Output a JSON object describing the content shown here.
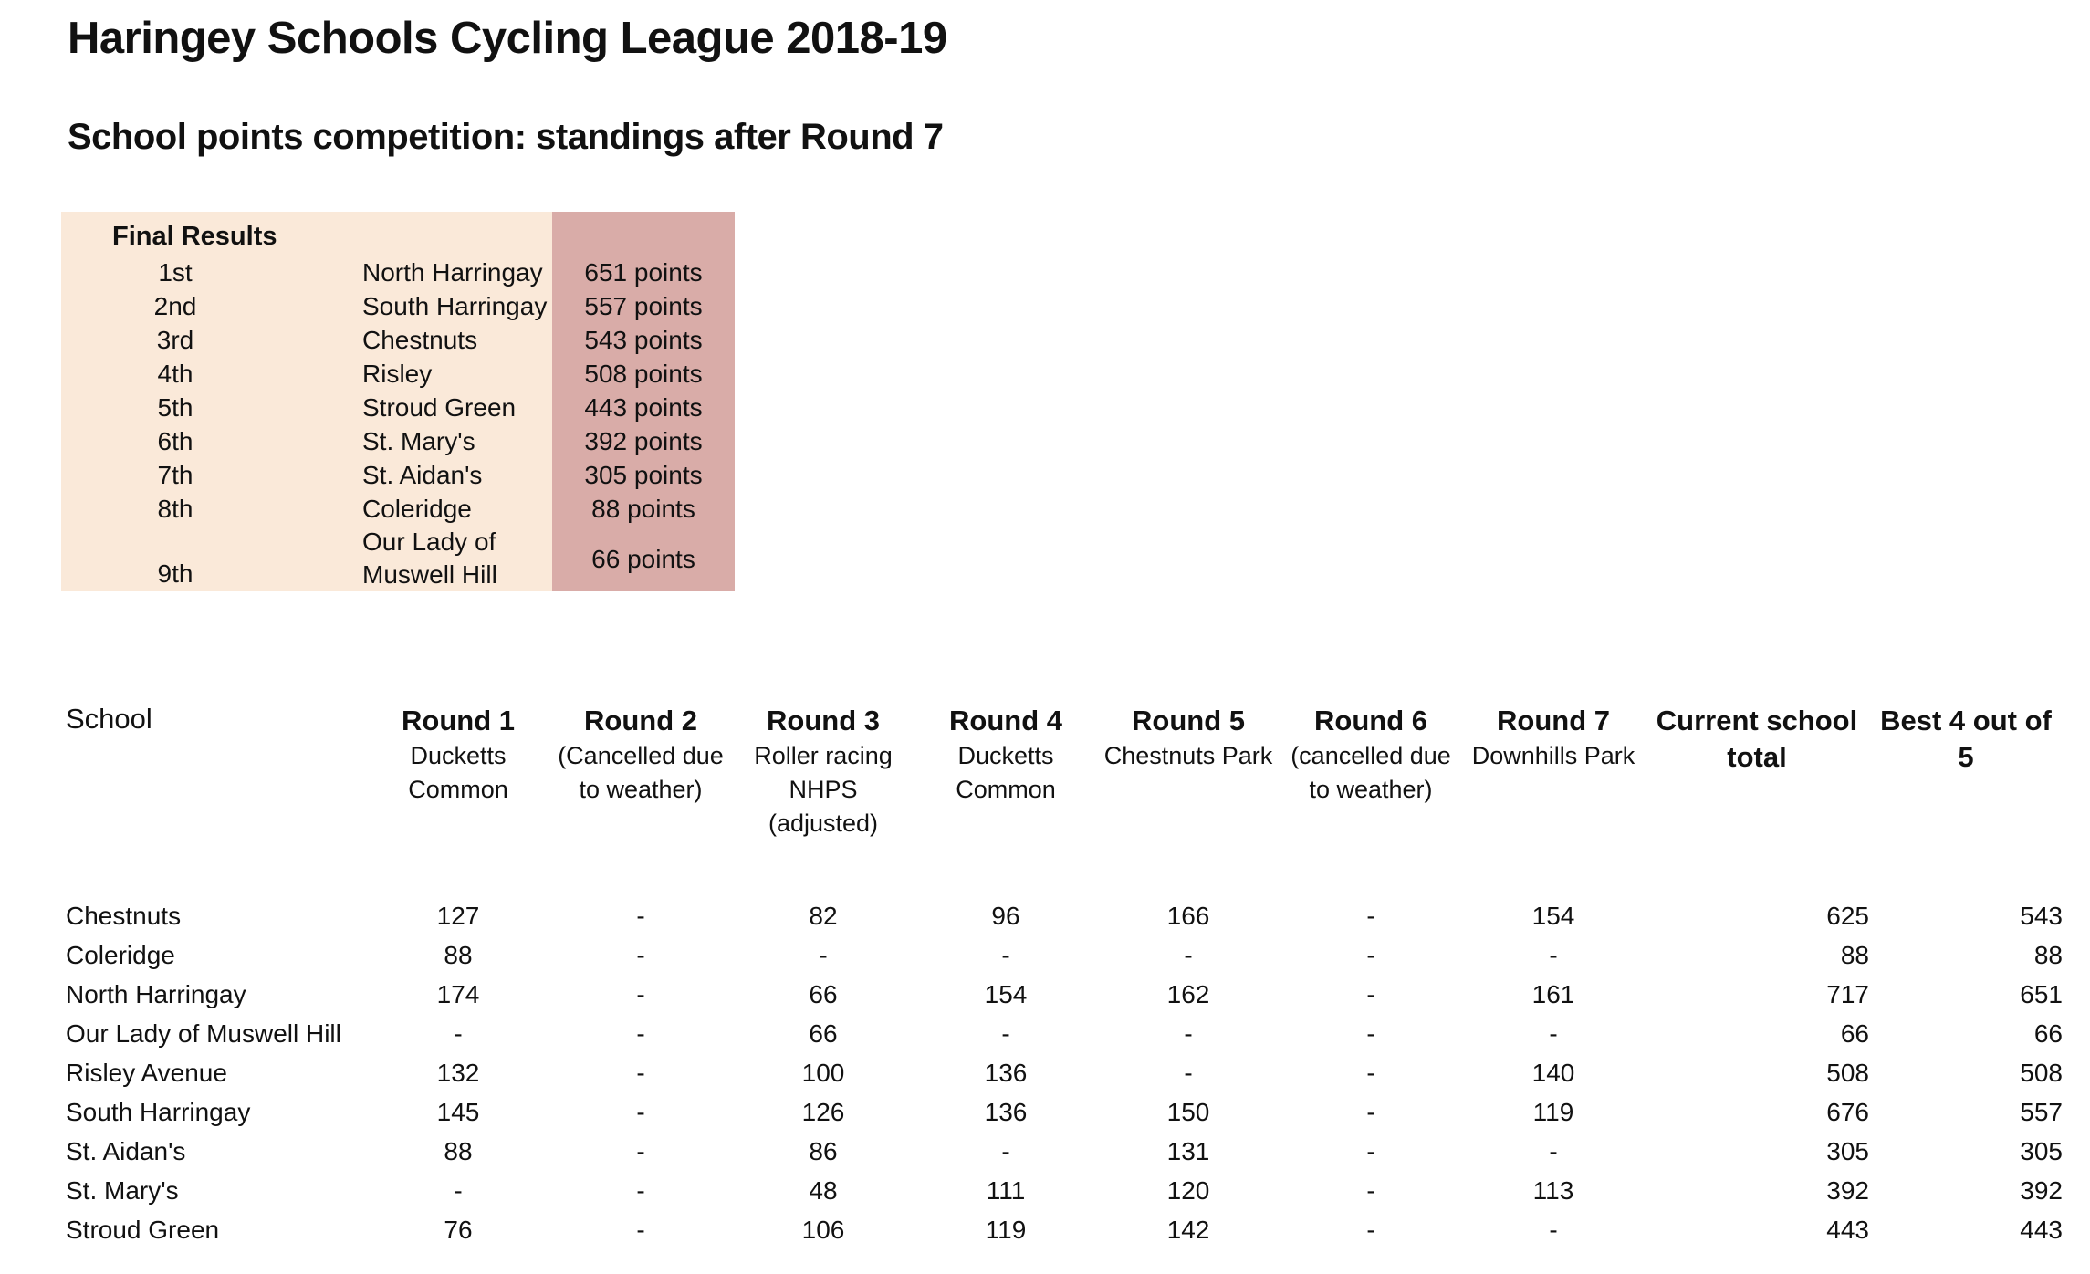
{
  "page": {
    "title": "Haringey Schools Cycling League 2018-19",
    "subtitle": "School points competition: standings after Round 7"
  },
  "colors": {
    "final_results_left_bg": "#FAE9D9",
    "final_results_points_bg": "#D9ACA8",
    "text": "#111111",
    "page_bg": "#FFFFFF"
  },
  "final_results": {
    "heading": "Final Results",
    "rows": [
      {
        "rank": "1st",
        "school": "North Harringay",
        "points": "651 points"
      },
      {
        "rank": "2nd",
        "school": "South Harringay",
        "points": "557 points"
      },
      {
        "rank": "3rd",
        "school": "Chestnuts",
        "points": "543 points"
      },
      {
        "rank": "4th",
        "school": "Risley",
        "points": "508 points"
      },
      {
        "rank": "5th",
        "school": "Stroud Green",
        "points": "443 points"
      },
      {
        "rank": "6th",
        "school": "St. Mary's",
        "points": "392 points"
      },
      {
        "rank": "7th",
        "school": "St. Aidan's",
        "points": "305 points"
      },
      {
        "rank": "8th",
        "school": "Coleridge",
        "points": "88 points"
      },
      {
        "rank": "9th",
        "school": "Our Lady of\nMuswell Hill",
        "points": "66 points"
      }
    ]
  },
  "standings": {
    "school_header": "School",
    "columns": [
      {
        "title": "Round 1",
        "subtitle": "Ducketts\nCommon"
      },
      {
        "title": "Round 2",
        "subtitle": "(Cancelled due\nto weather)"
      },
      {
        "title": "Round 3",
        "subtitle": "Roller racing\nNHPS\n(adjusted)"
      },
      {
        "title": "Round 4",
        "subtitle": "Ducketts\nCommon"
      },
      {
        "title": "Round 5",
        "subtitle": "Chestnuts Park"
      },
      {
        "title": "Round 6",
        "subtitle": "(cancelled due\nto weather)"
      },
      {
        "title": "Round 7",
        "subtitle": "Downhills Park"
      },
      {
        "title": "Current school\ntotal"
      },
      {
        "title": "Best 4 out of\n5"
      }
    ],
    "rows": [
      {
        "school": "Chestnuts",
        "values": [
          "127",
          "-",
          "82",
          "96",
          "166",
          "-",
          "154",
          "625",
          "543"
        ]
      },
      {
        "school": "Coleridge",
        "values": [
          "88",
          "-",
          "-",
          "-",
          "-",
          "-",
          "-",
          "88",
          "88"
        ]
      },
      {
        "school": "North Harringay",
        "values": [
          "174",
          "-",
          "66",
          "154",
          "162",
          "-",
          "161",
          "717",
          "651"
        ]
      },
      {
        "school": "Our Lady of Muswell Hill",
        "values": [
          "-",
          "-",
          "66",
          "-",
          "-",
          "-",
          "-",
          "66",
          "66"
        ]
      },
      {
        "school": "Risley Avenue",
        "values": [
          "132",
          "-",
          "100",
          "136",
          "-",
          "-",
          "140",
          "508",
          "508"
        ]
      },
      {
        "school": "South Harringay",
        "values": [
          "145",
          "-",
          "126",
          "136",
          "150",
          "-",
          "119",
          "676",
          "557"
        ]
      },
      {
        "school": "St. Aidan's",
        "values": [
          "88",
          "-",
          "86",
          "-",
          "131",
          "-",
          "-",
          "305",
          "305"
        ]
      },
      {
        "school": "St. Mary's",
        "values": [
          "-",
          "-",
          "48",
          "111",
          "120",
          "-",
          "113",
          "392",
          "392"
        ]
      },
      {
        "school": "Stroud Green",
        "values": [
          "76",
          "-",
          "106",
          "119",
          "142",
          "-",
          "-",
          "443",
          "443"
        ]
      }
    ]
  }
}
